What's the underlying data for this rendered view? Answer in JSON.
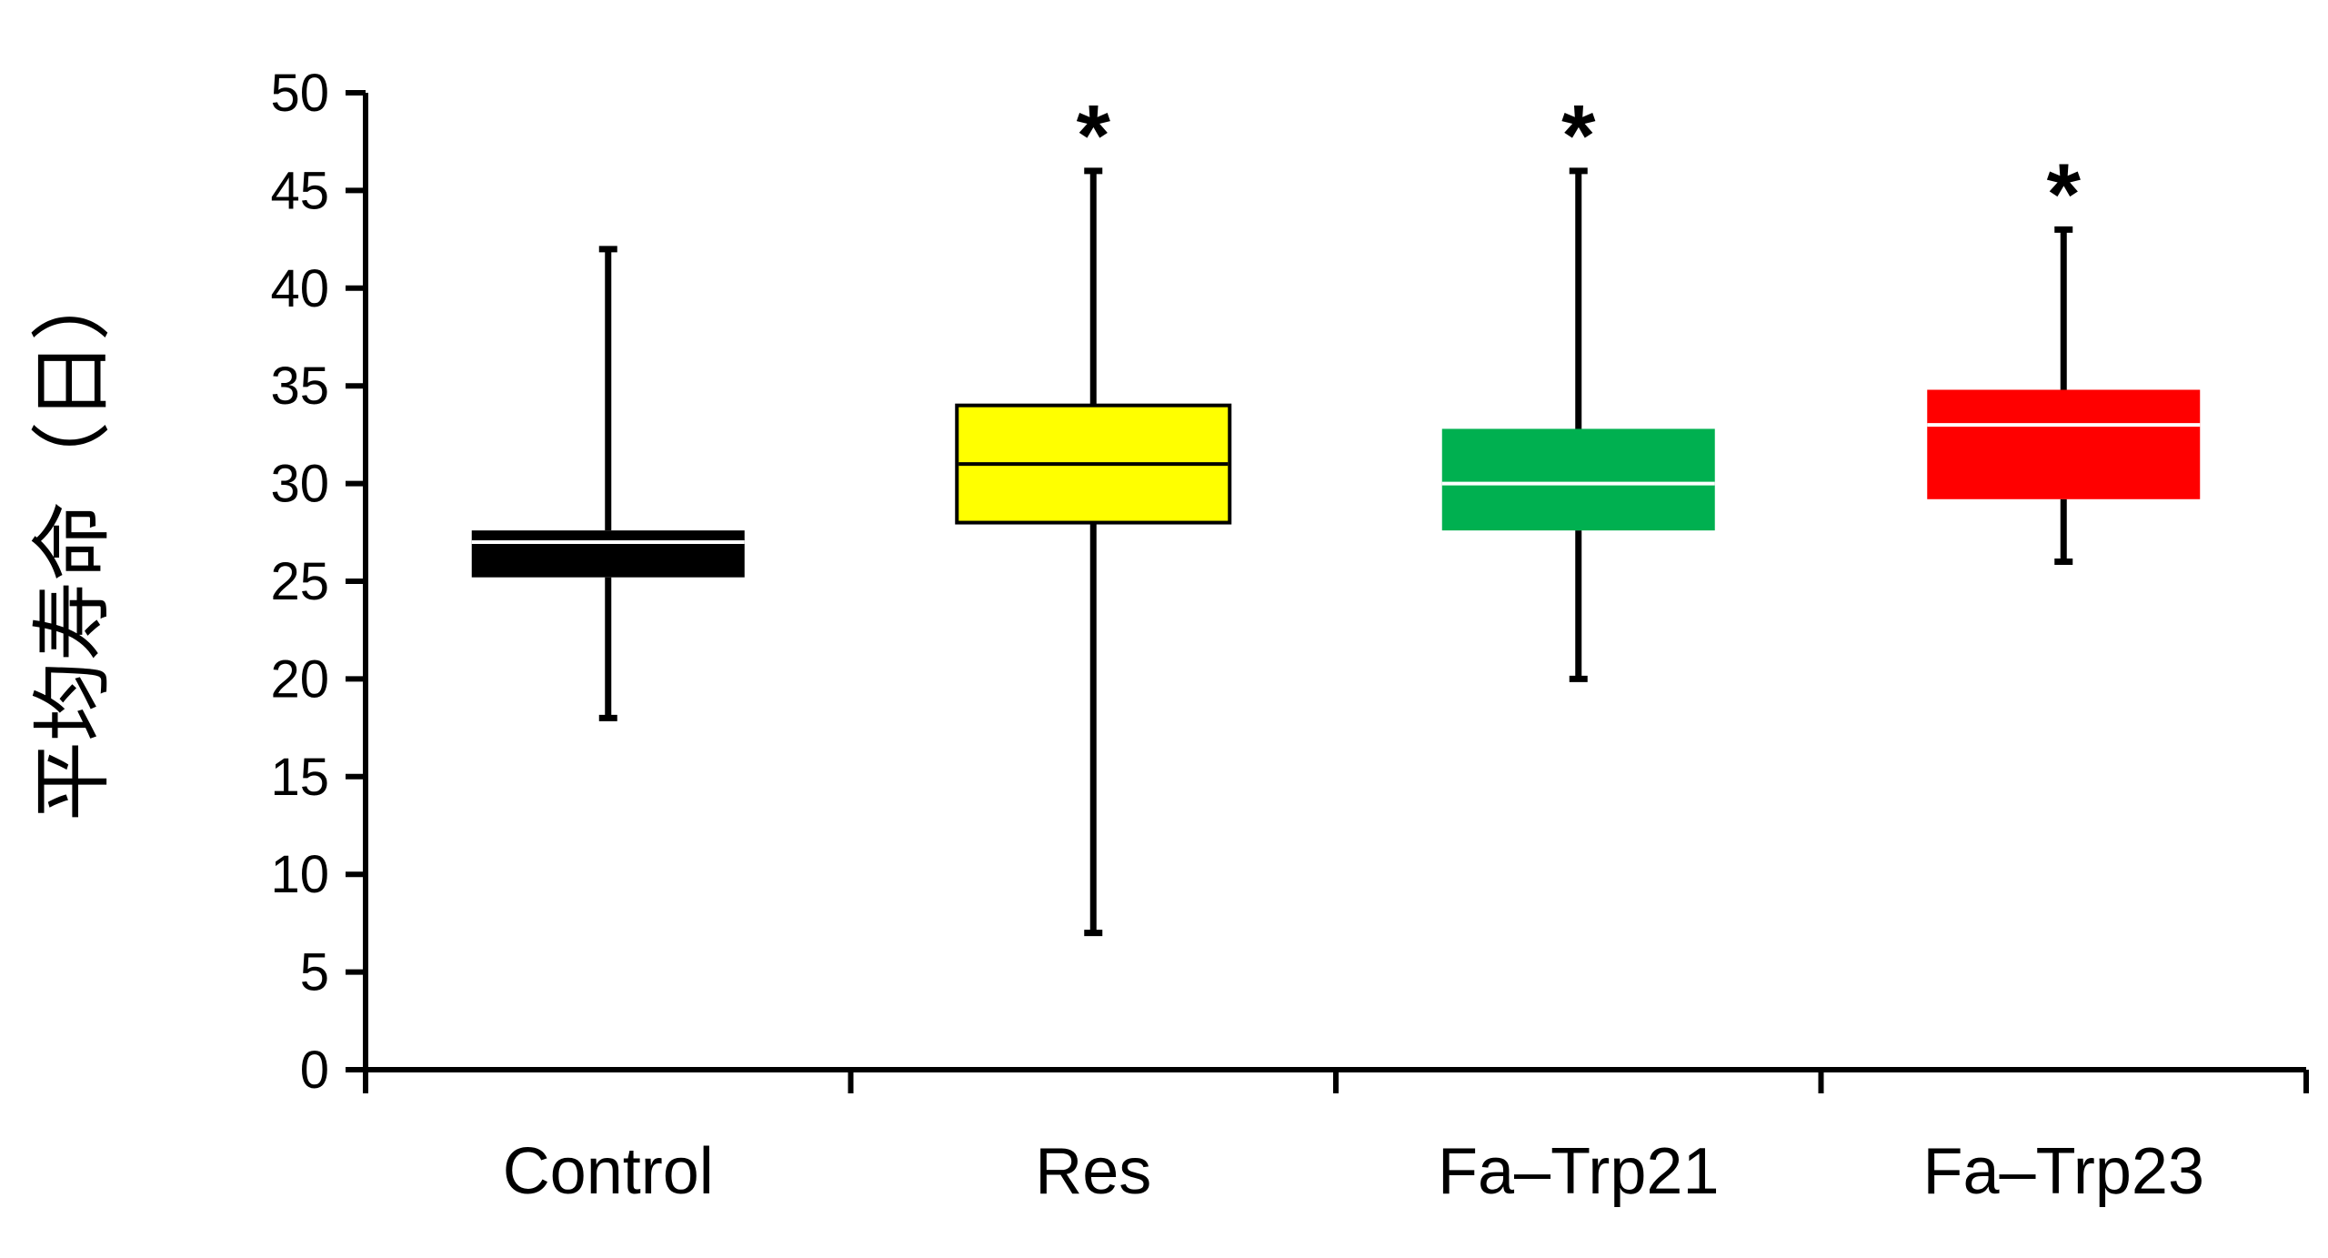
{
  "chart_data": {
    "type": "boxplot",
    "title": "",
    "xlabel": "",
    "ylabel": "平均寿命（日）",
    "ylim": [
      0,
      50
    ],
    "yticks": [
      0,
      5,
      10,
      15,
      20,
      25,
      30,
      35,
      40,
      45,
      50
    ],
    "grid": false,
    "categories": [
      "Control",
      "Res",
      "Fa–Trp21",
      "Fa–Trp23"
    ],
    "boxes": [
      {
        "name": "Control",
        "min": 18,
        "q1": 25.2,
        "median": 27,
        "q3": 27.6,
        "max": 42,
        "color": "#000000",
        "median_color": "#ffffff",
        "significance": ""
      },
      {
        "name": "Res",
        "min": 7,
        "q1": 28,
        "median": 31,
        "q3": 34,
        "max": 46,
        "color": "#ffff00",
        "median_color": "#000000",
        "significance": "*"
      },
      {
        "name": "Fa–Trp21",
        "min": 20,
        "q1": 27.6,
        "median": 30,
        "q3": 32.8,
        "max": 46,
        "color": "#00b050",
        "median_color": "#ffffff",
        "significance": "*"
      },
      {
        "name": "Fa–Trp23",
        "min": 26,
        "q1": 29.2,
        "median": 33,
        "q3": 34.8,
        "max": 43,
        "color": "#ff0000",
        "median_color": "#ffffff",
        "significance": "*"
      }
    ]
  }
}
